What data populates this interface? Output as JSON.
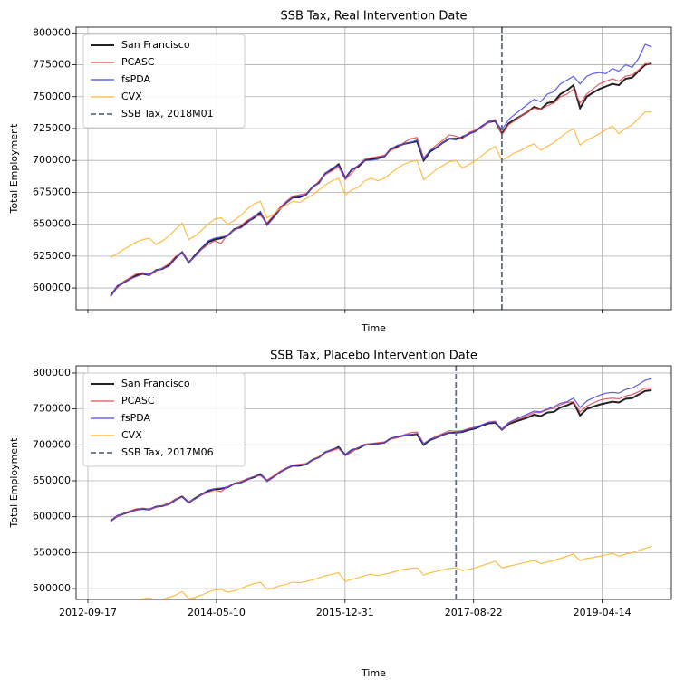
{
  "chart_data": [
    {
      "type": "line",
      "title": "SSB Tax, Real Intervention Date",
      "xlabel": "Time",
      "ylabel": "Total Employment",
      "xlim": [
        "2012-07-24",
        "2020-03-02"
      ],
      "xticks": [
        "2012-09-17",
        "2014-05-10",
        "2015-12-31",
        "2017-08-22",
        "2019-04-14"
      ],
      "xtick_labels": false,
      "ylim": [
        583000,
        804500
      ],
      "yticks": [
        600000,
        625000,
        650000,
        675000,
        700000,
        725000,
        750000,
        775000,
        800000
      ],
      "grid": true,
      "legend": "upper left",
      "vline": {
        "x": "2018-01-01",
        "label": "SSB Tax, 2018M01",
        "color": "#5b6f87"
      },
      "x": [
        "2013-01-01",
        "2013-02-01",
        "2013-03-01",
        "2013-04-01",
        "2013-05-01",
        "2013-06-01",
        "2013-07-01",
        "2013-08-01",
        "2013-09-01",
        "2013-10-01",
        "2013-11-01",
        "2013-12-01",
        "2014-01-01",
        "2014-02-01",
        "2014-03-01",
        "2014-04-01",
        "2014-05-01",
        "2014-06-01",
        "2014-07-01",
        "2014-08-01",
        "2014-09-01",
        "2014-10-01",
        "2014-11-01",
        "2014-12-01",
        "2015-01-01",
        "2015-02-01",
        "2015-03-01",
        "2015-04-01",
        "2015-05-01",
        "2015-06-01",
        "2015-07-01",
        "2015-08-01",
        "2015-09-01",
        "2015-10-01",
        "2015-11-01",
        "2015-12-01",
        "2016-01-01",
        "2016-02-01",
        "2016-03-01",
        "2016-04-01",
        "2016-05-01",
        "2016-06-01",
        "2016-07-01",
        "2016-08-01",
        "2016-09-01",
        "2016-10-01",
        "2016-11-01",
        "2016-12-01",
        "2017-01-01",
        "2017-02-01",
        "2017-03-01",
        "2017-04-01",
        "2017-05-01",
        "2017-06-01",
        "2017-07-01",
        "2017-08-01",
        "2017-09-01",
        "2017-10-01",
        "2017-11-01",
        "2017-12-01",
        "2018-01-01",
        "2018-02-01",
        "2018-03-01",
        "2018-04-01",
        "2018-05-01",
        "2018-06-01",
        "2018-07-01",
        "2018-08-01",
        "2018-09-01",
        "2018-10-01",
        "2018-11-01",
        "2018-12-01",
        "2019-01-01",
        "2019-02-01",
        "2019-03-01",
        "2019-04-01",
        "2019-05-01",
        "2019-06-01",
        "2019-07-01",
        "2019-08-01",
        "2019-09-01",
        "2019-10-01",
        "2019-11-01",
        "2019-12-01"
      ],
      "series": [
        {
          "name": "San Francisco",
          "color": "#222222",
          "width": 2,
          "values": [
            594000,
            601000,
            604000,
            607000,
            610000,
            611000,
            610000,
            614000,
            615000,
            618000,
            624000,
            628000,
            620000,
            626000,
            631000,
            636000,
            638000,
            639000,
            641000,
            646000,
            648000,
            652000,
            655000,
            659000,
            650000,
            656000,
            662000,
            667000,
            671000,
            671000,
            673000,
            679000,
            683000,
            690000,
            693000,
            697000,
            686000,
            693000,
            695000,
            700000,
            701000,
            702000,
            703000,
            709000,
            711000,
            713000,
            714000,
            715000,
            700000,
            707000,
            710000,
            714000,
            717000,
            717000,
            718000,
            721000,
            723000,
            727000,
            730000,
            731000,
            721000,
            729000,
            732000,
            735000,
            738000,
            742000,
            740000,
            745000,
            746000,
            752000,
            755000,
            759000,
            741000,
            750000,
            753000,
            756000,
            758000,
            760000,
            759000,
            764000,
            765000,
            770000,
            775000,
            776000
          ]
        },
        {
          "name": "PCASC",
          "color": "#ec4a55",
          "width": 1.2,
          "values": [
            596000,
            600000,
            605000,
            608000,
            611000,
            612000,
            610000,
            613000,
            616000,
            619000,
            625000,
            627000,
            621000,
            625000,
            630000,
            634000,
            637000,
            635000,
            642000,
            645000,
            649000,
            653000,
            656000,
            657000,
            651000,
            657000,
            663000,
            668000,
            672000,
            673000,
            674000,
            678000,
            684000,
            689000,
            692000,
            695000,
            685000,
            690000,
            696000,
            701000,
            702000,
            703000,
            704000,
            708000,
            710000,
            714000,
            717000,
            718000,
            702000,
            708000,
            712000,
            716000,
            720000,
            719000,
            717000,
            722000,
            724000,
            726000,
            730000,
            732000,
            720000,
            728000,
            731000,
            735000,
            738000,
            741000,
            740000,
            743000,
            745000,
            750000,
            752000,
            756000,
            745000,
            752000,
            756000,
            760000,
            762000,
            764000,
            762000,
            766000,
            767000,
            771000,
            776000,
            775000
          ]
        },
        {
          "name": "fsPDA",
          "color": "#4a4ae8",
          "width": 1.2,
          "values": [
            593000,
            602000,
            604000,
            607000,
            609000,
            611000,
            611000,
            614000,
            615000,
            617000,
            623000,
            628000,
            620000,
            625000,
            631000,
            637000,
            639000,
            640000,
            641000,
            646000,
            647000,
            651000,
            656000,
            660000,
            649000,
            655000,
            661000,
            667000,
            671000,
            672000,
            673000,
            679000,
            682000,
            690000,
            694000,
            696000,
            686000,
            693000,
            696000,
            700000,
            700000,
            701000,
            703000,
            709000,
            712000,
            713000,
            714000,
            716000,
            701000,
            708000,
            710000,
            714000,
            717000,
            716000,
            719000,
            721000,
            723000,
            727000,
            731000,
            731000,
            724000,
            732000,
            736000,
            740000,
            744000,
            748000,
            746000,
            752000,
            754000,
            760000,
            763000,
            766000,
            760000,
            766000,
            768000,
            769000,
            768000,
            772000,
            770000,
            775000,
            773000,
            780000,
            791000,
            789000
          ]
        },
        {
          "name": "CVX",
          "color": "#ffb633",
          "width": 1.2,
          "values": [
            624000,
            627000,
            630000,
            633000,
            636000,
            638000,
            639000,
            634000,
            637000,
            641000,
            646000,
            651000,
            638000,
            641000,
            645000,
            650000,
            654000,
            655000,
            650000,
            653000,
            657000,
            662000,
            666000,
            668000,
            655000,
            658000,
            662000,
            665000,
            668000,
            667000,
            670000,
            673000,
            677000,
            681000,
            684000,
            686000,
            673000,
            677000,
            679000,
            684000,
            686000,
            684000,
            686000,
            690000,
            694000,
            697000,
            699000,
            700000,
            685000,
            689000,
            693000,
            696000,
            699000,
            700000,
            694000,
            697000,
            700000,
            704000,
            708000,
            711000,
            700000,
            703000,
            706000,
            708000,
            711000,
            713000,
            708000,
            711000,
            714000,
            718000,
            722000,
            725000,
            712000,
            716000,
            718000,
            721000,
            724000,
            727000,
            721000,
            725000,
            728000,
            733000,
            738000,
            738000
          ]
        }
      ]
    },
    {
      "type": "line",
      "title": "SSB Tax, Placebo Intervention Date",
      "xlabel": "Time",
      "ylabel": "Total Employment",
      "xlim": [
        "2012-07-24",
        "2020-03-02"
      ],
      "xticks": [
        "2012-09-17",
        "2014-05-10",
        "2015-12-31",
        "2017-08-22",
        "2019-04-14"
      ],
      "xtick_labels": true,
      "ylim": [
        485000,
        810000
      ],
      "yticks": [
        500000,
        550000,
        600000,
        650000,
        700000,
        750000,
        800000
      ],
      "grid": true,
      "legend": "upper left",
      "vline": {
        "x": "2017-06-01",
        "label": "SSB Tax, 2017M06",
        "color": "#5b6f87"
      },
      "x": [
        "2013-01-01",
        "2013-02-01",
        "2013-03-01",
        "2013-04-01",
        "2013-05-01",
        "2013-06-01",
        "2013-07-01",
        "2013-08-01",
        "2013-09-01",
        "2013-10-01",
        "2013-11-01",
        "2013-12-01",
        "2014-01-01",
        "2014-02-01",
        "2014-03-01",
        "2014-04-01",
        "2014-05-01",
        "2014-06-01",
        "2014-07-01",
        "2014-08-01",
        "2014-09-01",
        "2014-10-01",
        "2014-11-01",
        "2014-12-01",
        "2015-01-01",
        "2015-02-01",
        "2015-03-01",
        "2015-04-01",
        "2015-05-01",
        "2015-06-01",
        "2015-07-01",
        "2015-08-01",
        "2015-09-01",
        "2015-10-01",
        "2015-11-01",
        "2015-12-01",
        "2016-01-01",
        "2016-02-01",
        "2016-03-01",
        "2016-04-01",
        "2016-05-01",
        "2016-06-01",
        "2016-07-01",
        "2016-08-01",
        "2016-09-01",
        "2016-10-01",
        "2016-11-01",
        "2016-12-01",
        "2017-01-01",
        "2017-02-01",
        "2017-03-01",
        "2017-04-01",
        "2017-05-01",
        "2017-06-01",
        "2017-07-01",
        "2017-08-01",
        "2017-09-01",
        "2017-10-01",
        "2017-11-01",
        "2017-12-01",
        "2018-01-01",
        "2018-02-01",
        "2018-03-01",
        "2018-04-01",
        "2018-05-01",
        "2018-06-01",
        "2018-07-01",
        "2018-08-01",
        "2018-09-01",
        "2018-10-01",
        "2018-11-01",
        "2018-12-01",
        "2019-01-01",
        "2019-02-01",
        "2019-03-01",
        "2019-04-01",
        "2019-05-01",
        "2019-06-01",
        "2019-07-01",
        "2019-08-01",
        "2019-09-01",
        "2019-10-01",
        "2019-11-01",
        "2019-12-01"
      ],
      "series": [
        {
          "name": "San Francisco",
          "color": "#222222",
          "width": 2,
          "values": [
            594000,
            601000,
            604000,
            607000,
            610000,
            611000,
            610000,
            614000,
            615000,
            618000,
            624000,
            628000,
            620000,
            626000,
            631000,
            636000,
            638000,
            639000,
            641000,
            646000,
            648000,
            652000,
            655000,
            659000,
            650000,
            656000,
            662000,
            667000,
            671000,
            671000,
            673000,
            679000,
            683000,
            690000,
            693000,
            697000,
            686000,
            693000,
            695000,
            700000,
            701000,
            702000,
            703000,
            709000,
            711000,
            713000,
            714000,
            715000,
            700000,
            707000,
            710000,
            714000,
            717000,
            717000,
            718000,
            721000,
            723000,
            727000,
            730000,
            731000,
            721000,
            729000,
            732000,
            735000,
            738000,
            742000,
            740000,
            745000,
            746000,
            752000,
            755000,
            759000,
            741000,
            750000,
            753000,
            756000,
            758000,
            760000,
            759000,
            764000,
            765000,
            770000,
            775000,
            776000
          ]
        },
        {
          "name": "PCASC",
          "color": "#ec4a55",
          "width": 1.2,
          "values": [
            596000,
            600000,
            605000,
            608000,
            611000,
            612000,
            610000,
            613000,
            616000,
            619000,
            625000,
            627000,
            621000,
            625000,
            630000,
            634000,
            637000,
            635000,
            642000,
            645000,
            649000,
            653000,
            656000,
            657000,
            651000,
            657000,
            663000,
            668000,
            672000,
            673000,
            674000,
            678000,
            684000,
            689000,
            692000,
            695000,
            685000,
            690000,
            696000,
            701000,
            702000,
            703000,
            704000,
            708000,
            710000,
            714000,
            717000,
            718000,
            702000,
            708000,
            712000,
            716000,
            720000,
            719000,
            720000,
            723000,
            725000,
            728000,
            732000,
            733000,
            721000,
            730000,
            734000,
            737000,
            741000,
            745000,
            745000,
            749000,
            751000,
            756000,
            759000,
            760000,
            746000,
            754000,
            758000,
            762000,
            764000,
            765000,
            764000,
            768000,
            770000,
            774000,
            779000,
            779000
          ]
        },
        {
          "name": "fsPDA",
          "color": "#4a4ae8",
          "width": 1.2,
          "values": [
            593000,
            602000,
            604000,
            607000,
            609000,
            611000,
            611000,
            614000,
            615000,
            617000,
            623000,
            628000,
            620000,
            625000,
            631000,
            637000,
            639000,
            640000,
            641000,
            646000,
            647000,
            651000,
            656000,
            660000,
            649000,
            655000,
            661000,
            667000,
            671000,
            672000,
            673000,
            679000,
            682000,
            690000,
            694000,
            696000,
            686000,
            693000,
            696000,
            700000,
            700000,
            701000,
            703000,
            709000,
            712000,
            713000,
            714000,
            716000,
            701000,
            708000,
            710000,
            714000,
            717000,
            716000,
            719000,
            722000,
            724000,
            728000,
            731000,
            732000,
            722000,
            731000,
            735000,
            739000,
            743000,
            747000,
            746000,
            750000,
            753000,
            758000,
            760000,
            765000,
            752000,
            761000,
            765000,
            769000,
            772000,
            773000,
            772000,
            777000,
            779000,
            784000,
            790000,
            792000
          ]
        },
        {
          "name": "CVX",
          "color": "#ffb633",
          "width": 1.2,
          "values": [
            476000,
            478000,
            480000,
            482000,
            484000,
            486000,
            487000,
            483000,
            485000,
            488000,
            491000,
            496000,
            486000,
            488000,
            491000,
            495000,
            498000,
            499000,
            495000,
            497000,
            500000,
            504000,
            507000,
            509000,
            499000,
            501000,
            504000,
            506000,
            509000,
            508000,
            510000,
            512000,
            515000,
            518000,
            520000,
            522000,
            510000,
            513000,
            515000,
            518000,
            520000,
            518000,
            520000,
            522000,
            525000,
            527000,
            528000,
            529000,
            519000,
            522000,
            524000,
            526000,
            528000,
            529000,
            525000,
            527000,
            529000,
            532000,
            535000,
            538000,
            529000,
            531000,
            533000,
            535000,
            537000,
            539000,
            535000,
            537000,
            539000,
            542000,
            545000,
            548000,
            539000,
            542000,
            543000,
            545000,
            547000,
            549000,
            545000,
            548000,
            550000,
            553000,
            556000,
            559000
          ]
        }
      ]
    }
  ]
}
